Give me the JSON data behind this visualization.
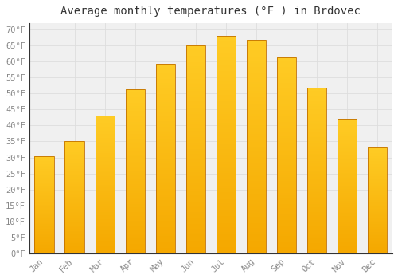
{
  "title": "Average monthly temperatures (°F ) in Brdovec",
  "months": [
    "Jan",
    "Feb",
    "Mar",
    "Apr",
    "May",
    "Jun",
    "Jul",
    "Aug",
    "Sep",
    "Oct",
    "Nov",
    "Dec"
  ],
  "values": [
    30.4,
    35.1,
    43.0,
    51.3,
    59.2,
    65.1,
    68.0,
    66.9,
    61.3,
    51.8,
    42.1,
    33.1
  ],
  "bar_color_top": "#FFC825",
  "bar_color_bottom": "#F5A800",
  "bar_edge_color": "#C07000",
  "background_color": "#FFFFFF",
  "plot_bg_color": "#F0F0F0",
  "grid_color": "#DDDDDD",
  "ylim": [
    0,
    72
  ],
  "yticks": [
    0,
    5,
    10,
    15,
    20,
    25,
    30,
    35,
    40,
    45,
    50,
    55,
    60,
    65,
    70
  ],
  "title_fontsize": 10,
  "tick_fontsize": 7.5,
  "tick_label_color": "#888888",
  "spine_color": "#333333"
}
